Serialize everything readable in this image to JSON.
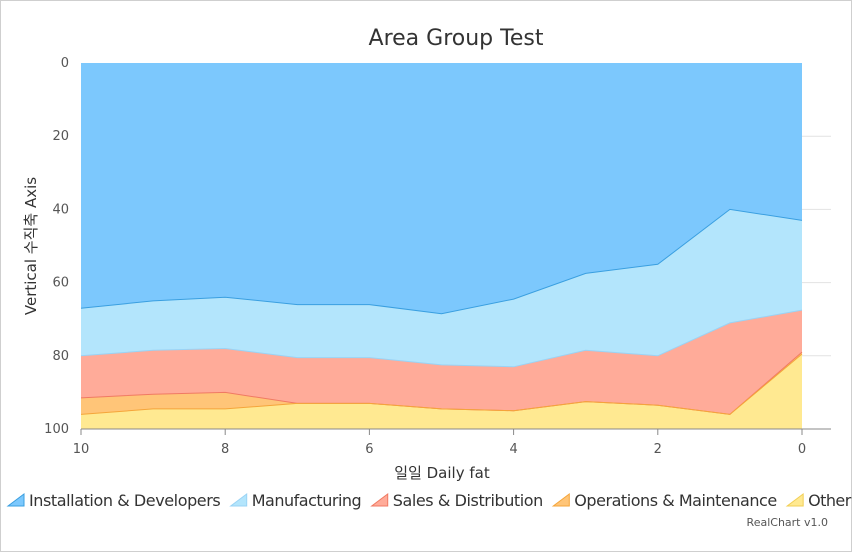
{
  "chart_data": {
    "type": "area",
    "stacked": true,
    "title": "Area Group Test",
    "xlabel": "일일 Daily fat",
    "ylabel": "Vertical 수직축 Axis",
    "x": [
      10,
      9,
      8,
      7,
      6,
      5,
      4,
      3,
      2,
      1,
      0
    ],
    "x_ticks": [
      "10",
      "8",
      "6",
      "4",
      "2",
      "0"
    ],
    "xlim": [
      10,
      0
    ],
    "ylim": [
      0,
      100
    ],
    "y_reversed": true,
    "y_ticks": [
      "0",
      "20",
      "40",
      "60",
      "80",
      "100"
    ],
    "grid": true,
    "legend_position": "bottom",
    "series": [
      {
        "name": "Installation & Developers",
        "color": "#7cc8fd",
        "values": [
          67,
          65,
          64,
          66,
          66,
          68.5,
          64.5,
          57.5,
          55,
          40,
          43
        ]
      },
      {
        "name": "Manufacturing",
        "color": "#b3e5fc",
        "values": [
          13,
          13.5,
          14,
          14.5,
          14.5,
          14,
          18.5,
          21,
          25,
          31,
          24.5
        ]
      },
      {
        "name": "Sales & Distribution",
        "color": "#ffab99",
        "values": [
          11.5,
          12,
          12,
          12.5,
          12.5,
          12,
          12,
          14,
          13.5,
          25,
          11.5
        ]
      },
      {
        "name": "Operations & Maintenance",
        "color": "#ffc578",
        "values": [
          4.5,
          4,
          4.5,
          0,
          0,
          0,
          0,
          0,
          0,
          0,
          0.5
        ]
      },
      {
        "name": "Other",
        "color": "#ffe991",
        "values": [
          4,
          5.5,
          5.5,
          7,
          7,
          5.5,
          5,
          7.5,
          6.5,
          4,
          20.5
        ]
      }
    ]
  },
  "credit": "RealChart v1.0"
}
